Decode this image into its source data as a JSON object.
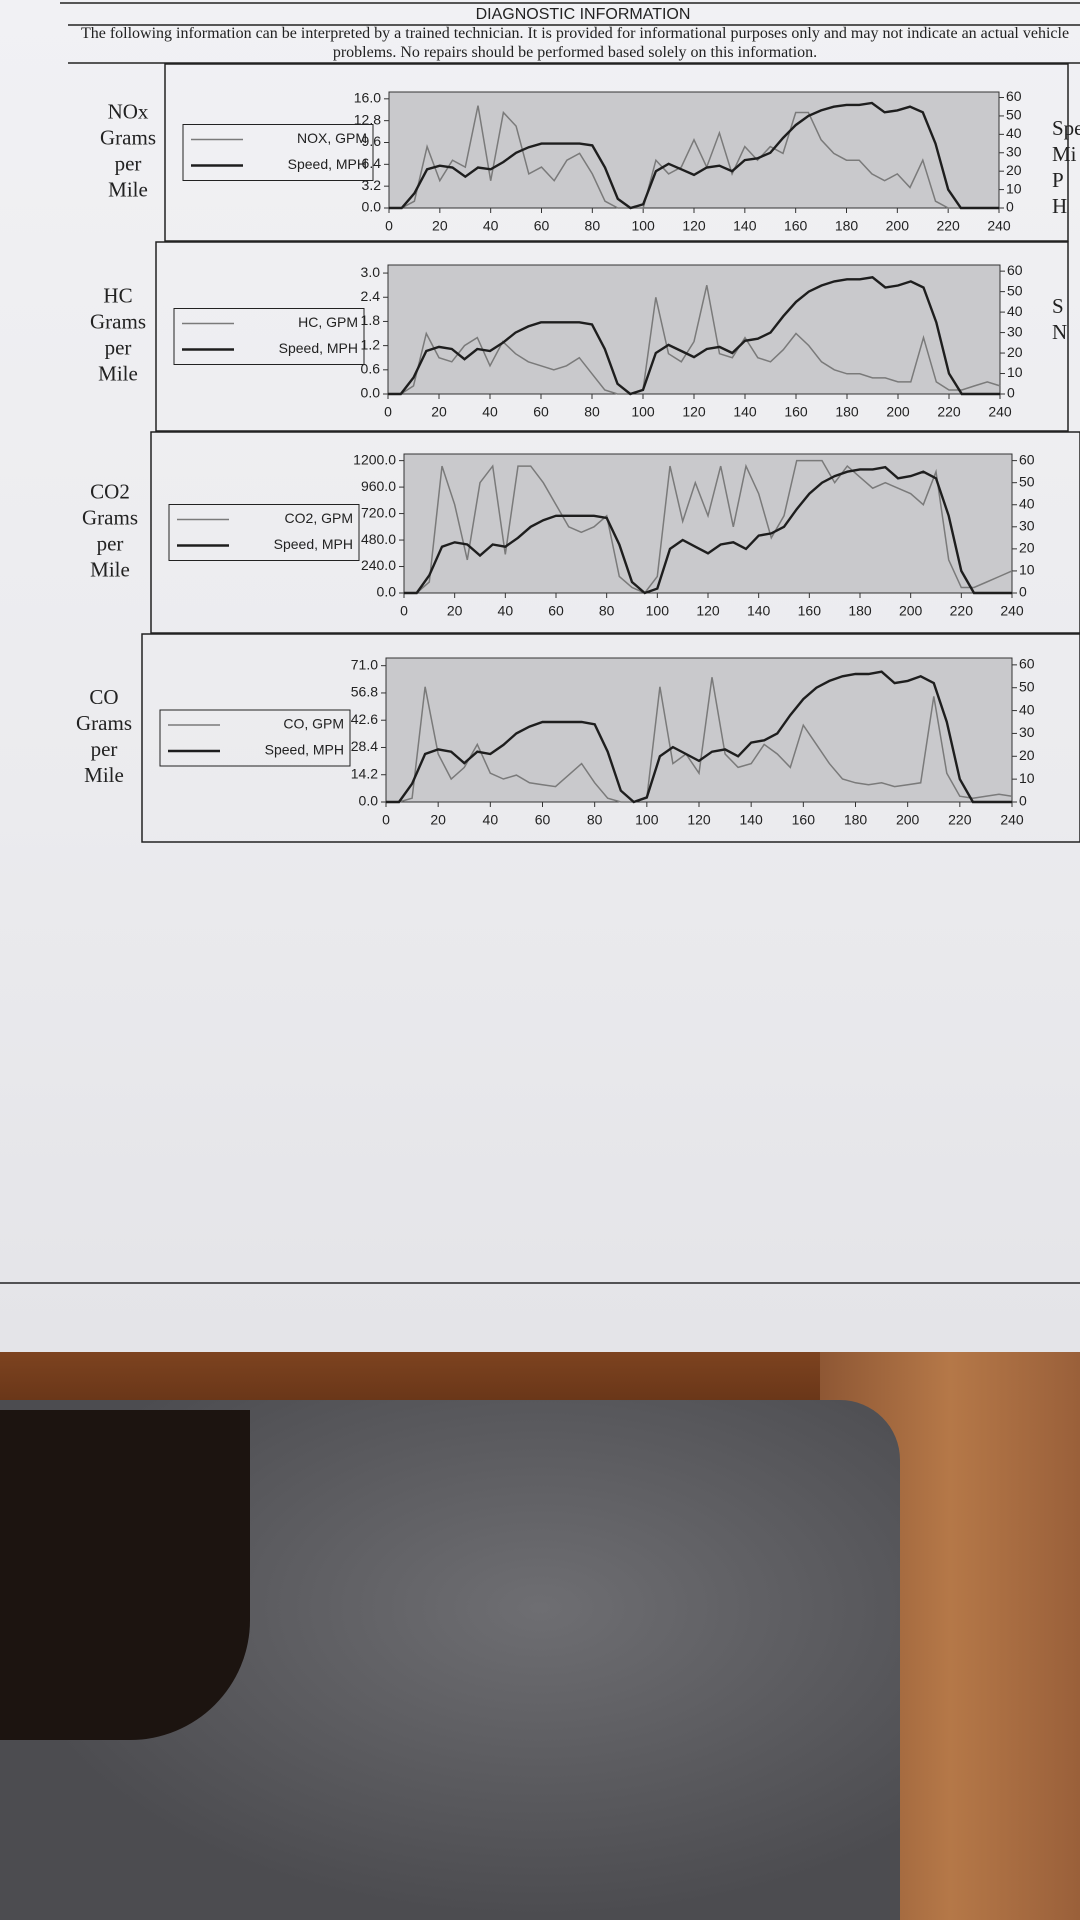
{
  "header": {
    "title": "DIAGNOSTIC INFORMATION",
    "notice": "The following information can be interpreted by a trained technician. It is provided for informational purposes only and may not indicate an actual vehicle problems. No repairs should be performed based solely on this information."
  },
  "panels": [
    {
      "label": [
        "NOx",
        "Grams",
        "per",
        "Mile"
      ],
      "right_label": [
        "Spe",
        "Mi",
        "P",
        "H"
      ]
    },
    {
      "label": [
        "HC",
        "Grams",
        "per",
        "Mile"
      ],
      "right_label": [
        "S",
        "N"
      ]
    },
    {
      "label": [
        "CO2",
        "Grams",
        "per",
        "Mile"
      ],
      "right_label": []
    },
    {
      "label": [
        "CO",
        "Grams",
        "per",
        "Mile"
      ],
      "right_label": []
    }
  ],
  "chart_data": [
    {
      "type": "line",
      "x": [
        0,
        5,
        10,
        15,
        20,
        25,
        30,
        35,
        40,
        45,
        50,
        55,
        60,
        65,
        70,
        75,
        80,
        85,
        90,
        95,
        100,
        105,
        110,
        115,
        120,
        125,
        130,
        135,
        140,
        145,
        150,
        155,
        160,
        165,
        170,
        175,
        180,
        185,
        190,
        195,
        200,
        205,
        210,
        215,
        220,
        225,
        230,
        235,
        240
      ],
      "xlim": [
        0,
        240
      ],
      "xticks": [
        0,
        20,
        40,
        60,
        80,
        100,
        120,
        140,
        160,
        180,
        200,
        220,
        240
      ],
      "ylim": [
        0,
        17
      ],
      "yticks": [
        {
          "value": 0,
          "label": "0.0"
        },
        {
          "value": 3.2,
          "label": "3.2"
        },
        {
          "value": 6.4,
          "label": "6.4"
        },
        {
          "value": 9.6,
          "label": "9.6"
        },
        {
          "value": 12.8,
          "label": "12.8"
        },
        {
          "value": 16,
          "label": "16.0"
        }
      ],
      "y2lim": [
        0,
        63
      ],
      "y2ticks": [
        0,
        10,
        20,
        30,
        40,
        50,
        60
      ],
      "series": [
        {
          "name": "NOX, GPM",
          "color": "#7a7a7a",
          "values": [
            0,
            0,
            1,
            9,
            4,
            7,
            6,
            15,
            4,
            14,
            12,
            5,
            6,
            4,
            7,
            8,
            5,
            1,
            0,
            0,
            0,
            7,
            5,
            6,
            10,
            6,
            11,
            5,
            9,
            7,
            9,
            8,
            14,
            14,
            10,
            8,
            7,
            7,
            5,
            4,
            5,
            3,
            7,
            1,
            0,
            0,
            0,
            0,
            0
          ]
        },
        {
          "name": "Speed, MPH",
          "color": "#1e1e1e",
          "axis": "y2",
          "values": [
            0,
            0,
            8,
            21,
            23,
            22,
            17,
            22,
            21,
            25,
            30,
            33,
            35,
            35,
            35,
            35,
            34,
            22,
            5,
            0,
            2,
            20,
            24,
            21,
            18,
            22,
            23,
            20,
            26,
            27,
            30,
            38,
            45,
            50,
            53,
            55,
            56,
            56,
            57,
            52,
            53,
            55,
            52,
            35,
            10,
            0,
            0,
            0,
            0
          ]
        }
      ]
    },
    {
      "type": "line",
      "x": [
        0,
        5,
        10,
        15,
        20,
        25,
        30,
        35,
        40,
        45,
        50,
        55,
        60,
        65,
        70,
        75,
        80,
        85,
        90,
        95,
        100,
        105,
        110,
        115,
        120,
        125,
        130,
        135,
        140,
        145,
        150,
        155,
        160,
        165,
        170,
        175,
        180,
        185,
        190,
        195,
        200,
        205,
        210,
        215,
        220,
        225,
        230,
        235,
        240
      ],
      "xlim": [
        0,
        240
      ],
      "xticks": [
        0,
        20,
        40,
        60,
        80,
        100,
        120,
        140,
        160,
        180,
        200,
        220,
        240
      ],
      "ylim": [
        0,
        3.2
      ],
      "yticks": [
        {
          "value": 0,
          "label": "0.0"
        },
        {
          "value": 0.6,
          "label": "0.6"
        },
        {
          "value": 1.2,
          "label": "1.2"
        },
        {
          "value": 1.8,
          "label": "1.8"
        },
        {
          "value": 2.4,
          "label": "2.4"
        },
        {
          "value": 3,
          "label": "3.0"
        }
      ],
      "y2lim": [
        0,
        63
      ],
      "y2ticks": [
        0,
        10,
        20,
        30,
        40,
        50,
        60
      ],
      "series": [
        {
          "name": "HC, GPM",
          "color": "#7a7a7a",
          "values": [
            0,
            0,
            0.2,
            1.5,
            0.9,
            0.8,
            1.2,
            1.4,
            0.7,
            1.3,
            1.0,
            0.8,
            0.7,
            0.6,
            0.7,
            0.9,
            0.5,
            0.1,
            0,
            0,
            0.1,
            2.4,
            1.0,
            0.8,
            1.3,
            2.7,
            1.0,
            0.9,
            1.4,
            0.9,
            0.8,
            1.1,
            1.5,
            1.2,
            0.8,
            0.6,
            0.5,
            0.5,
            0.4,
            0.4,
            0.3,
            0.3,
            1.4,
            0.3,
            0.1,
            0.1,
            0.2,
            0.3,
            0.2
          ]
        },
        {
          "name": "Speed, MPH",
          "color": "#1e1e1e",
          "axis": "y2",
          "values": [
            0,
            0,
            8,
            21,
            23,
            22,
            17,
            22,
            21,
            25,
            30,
            33,
            35,
            35,
            35,
            35,
            34,
            22,
            5,
            0,
            2,
            20,
            24,
            21,
            18,
            22,
            23,
            20,
            26,
            27,
            30,
            38,
            45,
            50,
            53,
            55,
            56,
            56,
            57,
            52,
            53,
            55,
            52,
            35,
            10,
            0,
            0,
            0,
            0
          ]
        }
      ]
    },
    {
      "type": "line",
      "x": [
        0,
        5,
        10,
        15,
        20,
        25,
        30,
        35,
        40,
        45,
        50,
        55,
        60,
        65,
        70,
        75,
        80,
        85,
        90,
        95,
        100,
        105,
        110,
        115,
        120,
        125,
        130,
        135,
        140,
        145,
        150,
        155,
        160,
        165,
        170,
        175,
        180,
        185,
        190,
        195,
        200,
        205,
        210,
        215,
        220,
        225,
        230,
        235,
        240
      ],
      "xlim": [
        0,
        240
      ],
      "xticks": [
        0,
        20,
        40,
        60,
        80,
        100,
        120,
        140,
        160,
        180,
        200,
        220,
        240
      ],
      "ylim": [
        0,
        1260
      ],
      "yticks": [
        {
          "value": 0,
          "label": "0.0"
        },
        {
          "value": 240,
          "label": "240.0"
        },
        {
          "value": 480,
          "label": "480.0"
        },
        {
          "value": 720,
          "label": "720.0"
        },
        {
          "value": 960,
          "label": "960.0"
        },
        {
          "value": 1200,
          "label": "1200.0"
        }
      ],
      "y2lim": [
        0,
        63
      ],
      "y2ticks": [
        0,
        10,
        20,
        30,
        40,
        50,
        60
      ],
      "series": [
        {
          "name": "CO2, GPM",
          "color": "#7a7a7a",
          "values": [
            0,
            0,
            100,
            1150,
            800,
            300,
            1000,
            1150,
            350,
            1150,
            1150,
            1000,
            800,
            600,
            550,
            600,
            700,
            150,
            50,
            0,
            150,
            1150,
            650,
            1000,
            700,
            1150,
            600,
            1150,
            900,
            500,
            700,
            1200,
            1200,
            1200,
            1000,
            1150,
            1050,
            950,
            1000,
            950,
            900,
            800,
            1100,
            300,
            50,
            50,
            100,
            150,
            200
          ]
        },
        {
          "name": "Speed, MPH",
          "color": "#1e1e1e",
          "axis": "y2",
          "values": [
            0,
            0,
            8,
            21,
            23,
            22,
            17,
            22,
            21,
            25,
            30,
            33,
            35,
            35,
            35,
            35,
            34,
            22,
            5,
            0,
            2,
            20,
            24,
            21,
            18,
            22,
            23,
            20,
            26,
            27,
            30,
            38,
            45,
            50,
            53,
            55,
            56,
            56,
            57,
            52,
            53,
            55,
            52,
            35,
            10,
            0,
            0,
            0,
            0
          ]
        }
      ]
    },
    {
      "type": "line",
      "x": [
        0,
        5,
        10,
        15,
        20,
        25,
        30,
        35,
        40,
        45,
        50,
        55,
        60,
        65,
        70,
        75,
        80,
        85,
        90,
        95,
        100,
        105,
        110,
        115,
        120,
        125,
        130,
        135,
        140,
        145,
        150,
        155,
        160,
        165,
        170,
        175,
        180,
        185,
        190,
        195,
        200,
        205,
        210,
        215,
        220,
        225,
        230,
        235,
        240
      ],
      "xlim": [
        0,
        240
      ],
      "xticks": [
        0,
        20,
        40,
        60,
        80,
        100,
        120,
        140,
        160,
        180,
        200,
        220,
        240
      ],
      "ylim": [
        0,
        75
      ],
      "yticks": [
        {
          "value": 0,
          "label": "0.0"
        },
        {
          "value": 14.2,
          "label": "14.2"
        },
        {
          "value": 28.4,
          "label": "28.4"
        },
        {
          "value": 42.6,
          "label": "42.6"
        },
        {
          "value": 56.8,
          "label": "56.8"
        },
        {
          "value": 71,
          "label": "71.0"
        }
      ],
      "y2lim": [
        0,
        63
      ],
      "y2ticks": [
        0,
        10,
        20,
        30,
        40,
        50,
        60
      ],
      "series": [
        {
          "name": "CO, GPM",
          "color": "#7a7a7a",
          "values": [
            0,
            0,
            2,
            60,
            25,
            12,
            18,
            30,
            15,
            12,
            14,
            10,
            9,
            8,
            14,
            20,
            10,
            2,
            0,
            0,
            2,
            60,
            20,
            25,
            15,
            65,
            25,
            18,
            20,
            30,
            25,
            18,
            40,
            30,
            20,
            12,
            10,
            9,
            10,
            8,
            9,
            10,
            55,
            15,
            3,
            2,
            3,
            4,
            3
          ]
        },
        {
          "name": "Speed, MPH",
          "color": "#1e1e1e",
          "axis": "y2",
          "values": [
            0,
            0,
            8,
            21,
            23,
            22,
            17,
            22,
            21,
            25,
            30,
            33,
            35,
            35,
            35,
            35,
            34,
            22,
            5,
            0,
            2,
            20,
            24,
            21,
            18,
            22,
            23,
            20,
            26,
            27,
            30,
            38,
            45,
            50,
            53,
            55,
            56,
            56,
            57,
            52,
            53,
            55,
            52,
            35,
            10,
            0,
            0,
            0,
            0
          ]
        }
      ]
    }
  ]
}
